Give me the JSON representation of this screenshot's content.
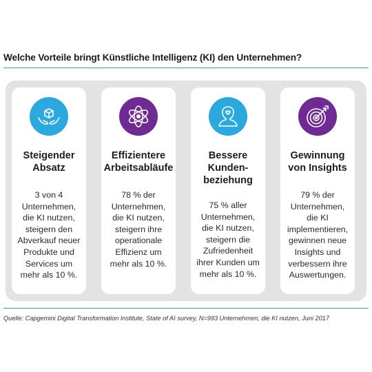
{
  "title": "Welche Vorteile bringt Künstliche Intelligenz (KI) den Unternehmen?",
  "colors": {
    "accent_blue": "#2ba9df",
    "accent_purple": "#6f2a93",
    "rule": "#2aa7d8",
    "panel": "#e3e3e3"
  },
  "cards": [
    {
      "icon": "hands-holding-box-icon",
      "title_lines": [
        "Steigender",
        "Absatz"
      ],
      "body_lines": [
        "3 von 4",
        "Unternehmen,",
        "die KI nutzen,",
        "steigern den",
        "Abverkauf neuer",
        "Produkte und",
        "Services um",
        "mehr als 10 %."
      ]
    },
    {
      "icon": "atom-orbit-icon",
      "title_lines": [
        "Effizientere",
        "Arbeitsabläufe"
      ],
      "body_lines": [
        "78 % der",
        "Unternehmen,",
        "die KI nutzen,",
        "steigern ihre",
        "operationale",
        "Effizienz um",
        "mehr als 10 %."
      ]
    },
    {
      "icon": "person-heart-icon",
      "title_lines": [
        "Bessere",
        "Kunden-",
        "beziehung"
      ],
      "body_lines": [
        "75 % aller",
        "Unternehmen,",
        "die KI nutzen,",
        "steigern die",
        "Zufriedenheit",
        "ihrer Kunden um",
        "mehr als 10 %."
      ]
    },
    {
      "icon": "target-arrow-icon",
      "title_lines": [
        "Gewinnung",
        "von Insights"
      ],
      "body_lines": [
        "79 % der",
        "Unternehmen,",
        "die KI",
        "implementieren,",
        "gewinnen neue",
        "Insights und",
        "verbessern ihre",
        "Auswertungen."
      ]
    }
  ],
  "source": "Quelle: Capgemini Digital Transformation Institute, State of AI survey, N=993 Unternehmen, die KI nutzen, Juni 2017"
}
